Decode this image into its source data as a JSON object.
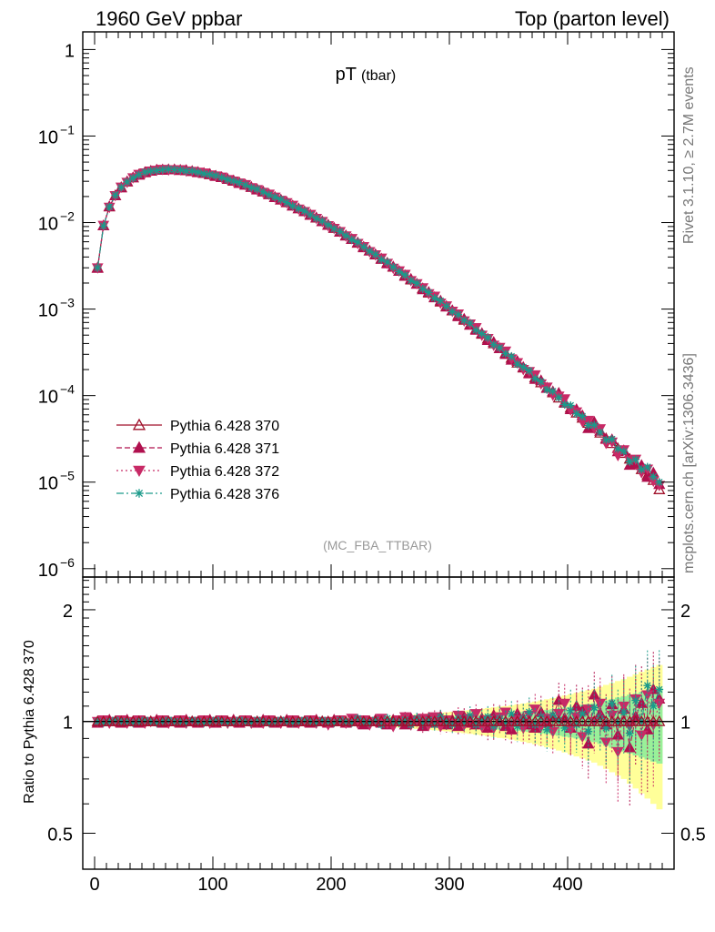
{
  "header": {
    "left": "1960 GeV ppbar",
    "right": "Top (parton level)"
  },
  "side_labels": {
    "rivet": "Rivet 3.1.10, ≥ 2.7M events",
    "mcplots": "mcplots.cern.ch [arXiv:1306.3436]"
  },
  "chart_data": [
    {
      "type": "line",
      "title": "pT",
      "title_sub": "(tbar)",
      "watermark": "(MC_FBA_TTBAR)",
      "xlim": [
        -10,
        490
      ],
      "ylog": true,
      "ylim": [
        8e-07,
        1.6
      ],
      "ytick_labels": [
        {
          "value": 1e-06,
          "base": "10",
          "exp": "−6"
        },
        {
          "value": 1e-05,
          "base": "10",
          "exp": "−5"
        },
        {
          "value": 0.0001,
          "base": "10",
          "exp": "−4"
        },
        {
          "value": 0.001,
          "base": "10",
          "exp": "−3"
        },
        {
          "value": 0.01,
          "base": "10",
          "exp": "−2"
        },
        {
          "value": 0.1,
          "base": "10",
          "exp": "−1"
        },
        {
          "value": 1,
          "base": "1",
          "exp": ""
        }
      ],
      "legend_position": "bottom-left",
      "x": [
        2.5,
        7.5,
        12.5,
        17.5,
        22.5,
        27.5,
        32.5,
        37.5,
        42.5,
        47.5,
        52.5,
        57.5,
        62.5,
        67.5,
        72.5,
        77.5,
        82.5,
        87.5,
        92.5,
        97.5,
        102.5,
        107.5,
        112.5,
        117.5,
        122.5,
        127.5,
        132.5,
        137.5,
        142.5,
        147.5,
        152.5,
        157.5,
        162.5,
        167.5,
        172.5,
        177.5,
        182.5,
        187.5,
        192.5,
        197.5,
        202.5,
        207.5,
        212.5,
        217.5,
        222.5,
        227.5,
        232.5,
        237.5,
        242.5,
        247.5,
        252.5,
        257.5,
        262.5,
        267.5,
        272.5,
        277.5,
        282.5,
        287.5,
        292.5,
        297.5,
        302.5,
        307.5,
        312.5,
        317.5,
        322.5,
        327.5,
        332.5,
        337.5,
        342.5,
        347.5,
        352.5,
        357.5,
        362.5,
        367.5,
        372.5,
        377.5,
        382.5,
        387.5,
        392.5,
        397.5,
        402.5,
        407.5,
        412.5,
        417.5,
        422.5,
        427.5,
        432.5,
        437.5,
        442.5,
        447.5,
        452.5,
        457.5,
        462.5,
        467.5,
        472.5,
        477.5
      ],
      "series": [
        {
          "name": "Pythia 6.428 370",
          "color": "#a0102a",
          "marker": "triangle-up-open",
          "dash": "",
          "values": [
            0.003,
            0.0092,
            0.0152,
            0.0205,
            0.0255,
            0.0295,
            0.033,
            0.0358,
            0.0379,
            0.0394,
            0.0403,
            0.0408,
            0.041,
            0.0409,
            0.0405,
            0.0399,
            0.0391,
            0.0382,
            0.0371,
            0.0359,
            0.0346,
            0.0332,
            0.0317,
            0.0302,
            0.0287,
            0.0272,
            0.0256,
            0.0241,
            0.0226,
            0.0211,
            0.0197,
            0.0183,
            0.017,
            0.0157,
            0.0145,
            0.0134,
            0.0123,
            0.0113,
            0.0103,
            0.0094,
            0.00858,
            0.0078,
            0.00708,
            0.00641,
            0.0058,
            0.00523,
            0.00471,
            0.00424,
            0.00381,
            0.00342,
            0.00306,
            0.00274,
            0.00245,
            0.00218,
            0.00195,
            0.00173,
            0.00154,
            0.00137,
            0.00121,
            0.00108,
            0.000955,
            0.000845,
            0.000747,
            0.00066,
            0.000583,
            0.000514,
            0.000453,
            0.000399,
            0.000351,
            0.000309,
            0.000271,
            0.000238,
            0.000209,
            0.000183,
            0.000161,
            0.000141,
            0.000123,
            0.000108,
            9.4e-05,
            8.2e-05,
            7.2e-05,
            6.3e-05,
            5.5e-05,
            4.8e-05,
            4.2e-05,
            3.7e-05,
            3.2e-05,
            2.8e-05,
            2.45e-05,
            2.15e-05,
            1.85e-05,
            1.6e-05,
            1.4e-05,
            1.2e-05,
            1.05e-05,
            8.2e-06
          ]
        },
        {
          "name": "Pythia 6.428 371",
          "color": "#b0104e",
          "marker": "triangle-up",
          "dash": "6,3",
          "ratio": [
            0.99,
            1.0,
            1.01,
            1.0,
            0.99,
            1.01,
            1.0,
            0.99,
            1.0,
            1.0,
            1.01,
            0.99,
            1.0,
            1.0,
            0.99,
            1.01,
            1.0,
            0.99,
            1.0,
            1.01,
            0.99,
            1.0,
            1.0,
            1.01,
            0.99,
            1.0,
            1.0,
            0.99,
            1.01,
            1.0,
            0.99,
            1.0,
            1.01,
            0.99,
            1.0,
            1.0,
            0.99,
            1.01,
            1.0,
            0.99,
            1.01,
            1.0,
            0.99,
            1.0,
            1.01,
            0.98,
            1.0,
            1.01,
            0.99,
            0.98,
            1.01,
            1.0,
            0.98,
            1.02,
            1.0,
            0.97,
            1.02,
            0.99,
            1.03,
            0.98,
            1.01,
            0.97,
            1.03,
            0.99,
            0.98,
            1.02,
            0.96,
            1.04,
            1.0,
            0.97,
            0.95,
            1.05,
            1.02,
            0.98,
            0.96,
            1.06,
            0.99,
            1.03,
            1.14,
            1.02,
            0.96,
            1.1,
            1.07,
            0.87,
            1.18,
            1.05,
            0.98,
            1.11,
            0.92,
            1.08,
            0.85,
            1.03,
            1.12,
            0.95,
            1.22,
            1.15
          ]
        },
        {
          "name": "Pythia 6.428 372",
          "color": "#c82a66",
          "marker": "triangle-down",
          "dash": "2,3",
          "ratio": [
            1.0,
            1.01,
            0.99,
            1.0,
            1.01,
            0.99,
            1.0,
            1.01,
            0.99,
            1.0,
            1.0,
            1.01,
            0.99,
            1.0,
            1.01,
            0.99,
            1.0,
            1.0,
            1.01,
            0.99,
            1.0,
            1.01,
            0.99,
            1.0,
            1.0,
            1.01,
            0.99,
            1.0,
            0.99,
            1.01,
            1.0,
            0.99,
            1.0,
            1.01,
            0.99,
            1.0,
            1.01,
            0.99,
            1.0,
            0.98,
            1.0,
            1.01,
            0.99,
            1.02,
            0.99,
            1.01,
            0.98,
            1.0,
            1.02,
            0.99,
            0.97,
            1.01,
            1.03,
            0.98,
            1.01,
            1.02,
            0.98,
            1.03,
            0.97,
            1.01,
            0.99,
            1.04,
            0.98,
            1.02,
            1.05,
            0.97,
            1.01,
            0.96,
            1.03,
            1.06,
            0.98,
            1.01,
            0.96,
            1.04,
            1.08,
            0.97,
            1.02,
            0.94,
            1.05,
            1.12,
            0.95,
            1.03,
            0.91,
            1.08,
            1.0,
            1.12,
            0.88,
            1.04,
            0.83,
            1.1,
            0.97,
            1.15,
            0.92,
            1.18,
            0.98,
            1.12
          ]
        },
        {
          "name": "Pythia 6.428 376",
          "color": "#1a9a8a",
          "marker": "star",
          "dash": "8,3,2,3",
          "ratio": [
            1.0,
            0.99,
            1.0,
            1.01,
            1.0,
            1.0,
            0.99,
            1.0,
            1.01,
            1.0,
            0.99,
            1.0,
            1.01,
            1.0,
            1.0,
            0.99,
            1.01,
            1.0,
            0.99,
            1.0,
            1.01,
            1.0,
            0.99,
            1.0,
            1.01,
            1.0,
            0.99,
            1.01,
            1.0,
            0.99,
            1.0,
            1.01,
            1.0,
            0.99,
            1.0,
            1.01,
            1.0,
            0.99,
            1.01,
            1.0,
            0.99,
            1.01,
            1.0,
            0.99,
            1.02,
            1.0,
            0.99,
            1.01,
            0.98,
            1.02,
            1.0,
            0.99,
            1.01,
            0.98,
            1.02,
            0.99,
            1.01,
            0.98,
            1.03,
            1.0,
            0.98,
            1.02,
            0.99,
            1.04,
            0.98,
            1.01,
            1.03,
            0.97,
            1.02,
            0.99,
            1.05,
            0.97,
            1.02,
            1.06,
            0.98,
            1.03,
            0.95,
            1.04,
            1.01,
            0.96,
            1.07,
            0.98,
            1.05,
            0.94,
            1.09,
            1.02,
            0.96,
            1.12,
            0.99,
            1.06,
            0.93,
            1.14,
            1.0,
            1.25,
            1.1,
            1.22
          ]
        }
      ]
    },
    {
      "type": "line",
      "ylabel": "Ratio to Pythia 6.428 370",
      "xlim": [
        -10,
        490
      ],
      "ylog": true,
      "ylim": [
        0.4,
        2.45
      ],
      "yticks": [
        0.5,
        1,
        2
      ],
      "ytick_labels": [
        "0.5",
        "1",
        "2"
      ],
      "xticks": [
        0,
        100,
        200,
        300,
        400
      ],
      "xtick_labels": [
        "0",
        "100",
        "200",
        "300",
        "400"
      ],
      "band_stat_halfwidth": [
        0.005,
        0.005,
        0.005,
        0.005,
        0.005,
        0.005,
        0.005,
        0.005,
        0.005,
        0.005,
        0.005,
        0.005,
        0.005,
        0.005,
        0.005,
        0.005,
        0.005,
        0.005,
        0.005,
        0.005,
        0.005,
        0.005,
        0.005,
        0.005,
        0.005,
        0.005,
        0.005,
        0.005,
        0.005,
        0.005,
        0.006,
        0.006,
        0.006,
        0.007,
        0.007,
        0.007,
        0.008,
        0.008,
        0.009,
        0.009,
        0.01,
        0.01,
        0.011,
        0.011,
        0.012,
        0.013,
        0.013,
        0.014,
        0.015,
        0.016,
        0.017,
        0.018,
        0.019,
        0.02,
        0.021,
        0.022,
        0.024,
        0.025,
        0.027,
        0.028,
        0.03,
        0.032,
        0.034,
        0.036,
        0.038,
        0.04,
        0.042,
        0.045,
        0.048,
        0.05,
        0.053,
        0.056,
        0.06,
        0.063,
        0.067,
        0.071,
        0.075,
        0.08,
        0.085,
        0.09,
        0.095,
        0.1,
        0.11,
        0.115,
        0.12,
        0.13,
        0.14,
        0.15,
        0.16,
        0.17,
        0.18,
        0.19,
        0.2,
        0.21,
        0.22,
        0.23
      ],
      "band_total_halfwidth": [
        0.01,
        0.01,
        0.01,
        0.01,
        0.01,
        0.01,
        0.01,
        0.01,
        0.01,
        0.01,
        0.01,
        0.01,
        0.01,
        0.01,
        0.01,
        0.01,
        0.01,
        0.01,
        0.01,
        0.01,
        0.01,
        0.01,
        0.01,
        0.01,
        0.01,
        0.01,
        0.01,
        0.01,
        0.01,
        0.01,
        0.011,
        0.012,
        0.012,
        0.013,
        0.014,
        0.015,
        0.016,
        0.017,
        0.018,
        0.019,
        0.02,
        0.021,
        0.022,
        0.023,
        0.025,
        0.026,
        0.028,
        0.03,
        0.031,
        0.033,
        0.035,
        0.037,
        0.04,
        0.042,
        0.045,
        0.047,
        0.05,
        0.053,
        0.056,
        0.059,
        0.063,
        0.066,
        0.07,
        0.074,
        0.078,
        0.082,
        0.087,
        0.092,
        0.097,
        0.1,
        0.106,
        0.112,
        0.118,
        0.125,
        0.132,
        0.14,
        0.148,
        0.156,
        0.165,
        0.175,
        0.185,
        0.195,
        0.205,
        0.215,
        0.225,
        0.24,
        0.255,
        0.27,
        0.285,
        0.3,
        0.32,
        0.34,
        0.36,
        0.38,
        0.4,
        0.42
      ]
    }
  ]
}
